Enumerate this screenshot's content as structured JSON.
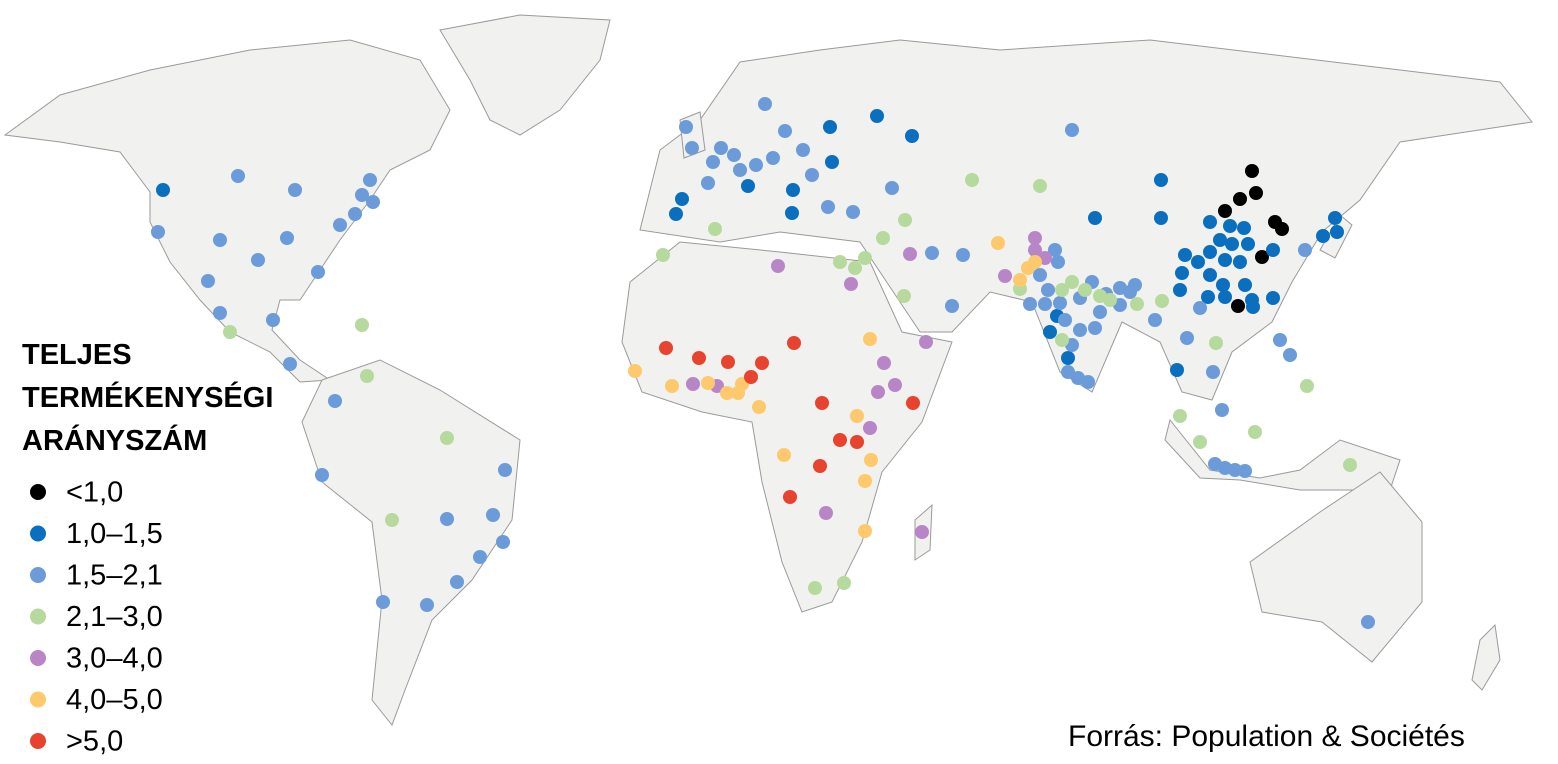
{
  "legend": {
    "title": [
      "TELJES",
      "TERMÉKENYSÉGI",
      "ARÁNYSZÁM"
    ],
    "items": [
      {
        "label": "<1,0",
        "color": "#000000"
      },
      {
        "label": "1,0–1,5",
        "color": "#0a6fbf"
      },
      {
        "label": "1,5–2,1",
        "color": "#6b9bd9"
      },
      {
        "label": "2,1–3,0",
        "color": "#b6d99e"
      },
      {
        "label": "3,0–4,0",
        "color": "#b886c6"
      },
      {
        "label": "4,0–5,0",
        "color": "#fdc96c"
      },
      {
        "label": ">5,0",
        "color": "#e8432f"
      }
    ]
  },
  "source": "Forrás: Population & Sociétés"
}
